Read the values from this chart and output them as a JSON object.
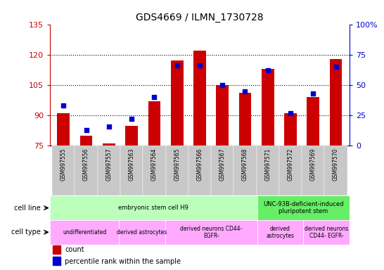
{
  "title": "GDS4669 / ILMN_1730728",
  "samples": [
    "GSM997555",
    "GSM997556",
    "GSM997557",
    "GSM997563",
    "GSM997564",
    "GSM997565",
    "GSM997566",
    "GSM997567",
    "GSM997568",
    "GSM997571",
    "GSM997572",
    "GSM997569",
    "GSM997570"
  ],
  "count_values": [
    91,
    80,
    76,
    85,
    97,
    117,
    122,
    105,
    101,
    113,
    91,
    99,
    118
  ],
  "percentile_values": [
    33,
    13,
    16,
    22,
    40,
    66,
    66,
    50,
    45,
    62,
    27,
    43,
    65
  ],
  "ylim_left": [
    75,
    135
  ],
  "ylim_right": [
    0,
    100
  ],
  "yticks_left": [
    75,
    90,
    105,
    120,
    135
  ],
  "yticks_right": [
    0,
    25,
    50,
    75,
    100
  ],
  "ytick_labels_left": [
    "75",
    "90",
    "105",
    "120",
    "135"
  ],
  "ytick_labels_right": [
    "0",
    "25",
    "50",
    "75",
    "100%"
  ],
  "bar_color": "#cc0000",
  "dot_color": "#0000cc",
  "cell_line_groups": [
    {
      "label": "embryonic stem cell H9",
      "start": 0,
      "end": 8,
      "color": "#bbffbb"
    },
    {
      "label": "UNC-93B-deficient-induced\npluripotent stem",
      "start": 9,
      "end": 12,
      "color": "#66ee66"
    }
  ],
  "cell_type_groups": [
    {
      "label": "undifferentiated",
      "start": 0,
      "end": 2,
      "color": "#ffaaff"
    },
    {
      "label": "derived astrocytes",
      "start": 3,
      "end": 4,
      "color": "#ffaaff"
    },
    {
      "label": "derived neurons CD44-\nEGFR-",
      "start": 5,
      "end": 8,
      "color": "#ffaaff"
    },
    {
      "label": "derived\nastrocytes",
      "start": 9,
      "end": 10,
      "color": "#ffaaff"
    },
    {
      "label": "derived neurons\nCD44- EGFR-",
      "start": 11,
      "end": 12,
      "color": "#ffaaff"
    }
  ],
  "left_axis_color": "#cc0000",
  "right_axis_color": "#0000cc",
  "tick_bg_color": "#c8c8c8"
}
